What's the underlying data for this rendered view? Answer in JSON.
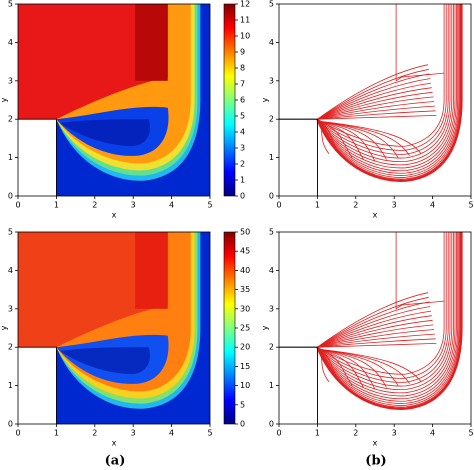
{
  "chart_data": [
    {
      "type": "contourf",
      "xlabel": "x",
      "ylabel": "y",
      "xlim": [
        0,
        5
      ],
      "ylim": [
        0,
        5
      ],
      "xticks": [
        0,
        1,
        2,
        3,
        4,
        5
      ],
      "yticks": [
        0,
        1,
        2,
        3,
        4,
        5
      ],
      "clim": [
        0,
        12
      ],
      "cticks": [
        0,
        1,
        2,
        3,
        4,
        5,
        6,
        7,
        8,
        9,
        10,
        11,
        12
      ]
    },
    {
      "type": "contour",
      "color": "#e02020",
      "xlabel": "x",
      "ylabel": "y",
      "xlim": [
        0,
        5
      ],
      "ylim": [
        0,
        5
      ],
      "xticks": [
        0,
        1,
        2,
        3,
        4,
        5
      ],
      "yticks": [
        0,
        1,
        2,
        3,
        4,
        5
      ]
    },
    {
      "type": "contourf",
      "xlabel": "x",
      "ylabel": "y",
      "xlim": [
        0,
        5
      ],
      "ylim": [
        0,
        5
      ],
      "xticks": [
        0,
        1,
        2,
        3,
        4,
        5
      ],
      "yticks": [
        0,
        1,
        2,
        3,
        4,
        5
      ],
      "clim": [
        0,
        50
      ],
      "cticks": [
        0,
        5,
        10,
        15,
        20,
        25,
        30,
        35,
        40,
        45,
        50
      ]
    },
    {
      "type": "contour",
      "color": "#e02020",
      "xlabel": "x",
      "ylabel": "y",
      "xlim": [
        0,
        5
      ],
      "ylim": [
        0,
        5
      ],
      "xticks": [
        0,
        1,
        2,
        3,
        4,
        5
      ],
      "yticks": [
        0,
        1,
        2,
        3,
        4,
        5
      ]
    }
  ],
  "captions": [
    "(a)",
    "(b)"
  ]
}
